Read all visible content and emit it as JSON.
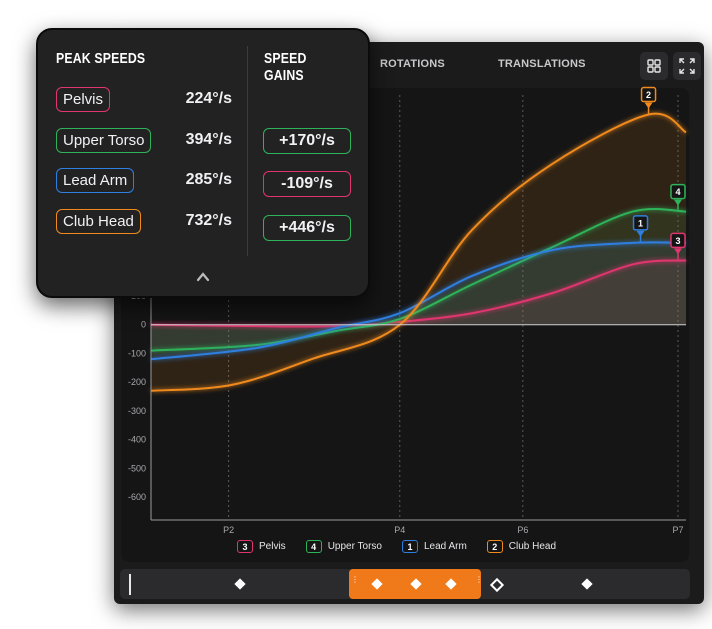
{
  "tabs": [
    "ROTATIONS",
    "TRANSLATIONS"
  ],
  "popup": {
    "peak_title": "PEAK SPEEDS",
    "gain_title": "SPEED GAINS",
    "peaks": [
      {
        "label": "Pelvis",
        "value": "224°/s",
        "color": "#e0356f"
      },
      {
        "label": "Upper Torso",
        "value": "394°/s",
        "color": "#2fb35a"
      },
      {
        "label": "Lead Arm",
        "value": "285°/s",
        "color": "#2f7fe0"
      },
      {
        "label": "Club Head",
        "value": "732°/s",
        "color": "#f08a1c"
      }
    ],
    "gains": [
      {
        "value": "+170°/s",
        "color": "#2fb35a"
      },
      {
        "value": "-109°/s",
        "color": "#e0356f"
      },
      {
        "value": "+446°/s",
        "color": "#2fb35a"
      }
    ]
  },
  "legend": [
    {
      "num": "3",
      "label": "Pelvis",
      "color": "#e0356f"
    },
    {
      "num": "4",
      "label": "Upper Torso",
      "color": "#2fb35a"
    },
    {
      "num": "1",
      "label": "Lead Arm",
      "color": "#2f7fe0"
    },
    {
      "num": "2",
      "label": "Club Head",
      "color": "#f08a1c"
    }
  ],
  "chart_data": {
    "type": "line",
    "ylabel": "",
    "xlabel": "",
    "x_ticks": [
      "P2",
      "P4",
      "P6",
      "P7"
    ],
    "y_ticks": [
      100,
      0,
      -100,
      -200,
      -300,
      -400,
      -500,
      -600
    ],
    "ylim": [
      -680,
      800
    ],
    "xlim": [
      0,
      1
    ],
    "x_tick_positions": [
      0.145,
      0.465,
      0.695,
      0.985
    ],
    "series": [
      {
        "name": "Pelvis",
        "num": "3",
        "color": "#e0356f",
        "x": [
          0,
          0.2,
          0.35,
          0.465,
          0.6,
          0.75,
          0.9,
          1.0
        ],
        "y": [
          0,
          -5,
          -5,
          10,
          40,
          110,
          210,
          224
        ]
      },
      {
        "name": "Upper Torso",
        "num": "4",
        "color": "#2fb35a",
        "x": [
          0,
          0.2,
          0.35,
          0.465,
          0.6,
          0.75,
          0.9,
          1.0
        ],
        "y": [
          -90,
          -70,
          -20,
          20,
          140,
          270,
          394,
          394
        ]
      },
      {
        "name": "Lead Arm",
        "num": "1",
        "color": "#2f7fe0",
        "x": [
          0,
          0.2,
          0.35,
          0.465,
          0.6,
          0.75,
          0.9,
          1.0
        ],
        "y": [
          -120,
          -80,
          -10,
          40,
          170,
          260,
          285,
          285
        ]
      },
      {
        "name": "Club Head",
        "num": "2",
        "color": "#f08a1c",
        "x": [
          0,
          0.15,
          0.3,
          0.465,
          0.6,
          0.75,
          0.93,
          1.0
        ],
        "y": [
          -230,
          -210,
          -120,
          0,
          330,
          560,
          732,
          670
        ]
      }
    ],
    "peak_markers": [
      {
        "series": "Club Head",
        "num": "2",
        "x": 0.93,
        "y": 732
      },
      {
        "series": "Upper Torso",
        "num": "4",
        "x": 0.985,
        "y": 394
      },
      {
        "series": "Lead Arm",
        "num": "1",
        "x": 0.915,
        "y": 285
      },
      {
        "series": "Pelvis",
        "num": "3",
        "x": 0.985,
        "y": 224
      }
    ]
  },
  "timeline": {
    "markers": [
      0.21,
      0.45,
      0.52,
      0.58,
      0.66,
      0.82
    ]
  }
}
